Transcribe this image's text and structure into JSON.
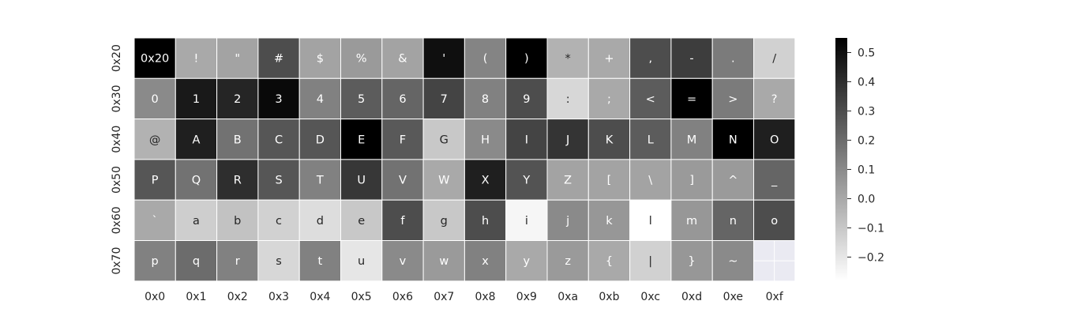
{
  "chart_data": {
    "type": "heatmap",
    "x_tick_labels": [
      "0x0",
      "0x1",
      "0x2",
      "0x3",
      "0x4",
      "0x5",
      "0x6",
      "0x7",
      "0x8",
      "0x9",
      "0xa",
      "0xb",
      "0xc",
      "0xd",
      "0xe",
      "0xf"
    ],
    "y_tick_labels": [
      "0x20",
      "0x30",
      "0x40",
      "0x50",
      "0x60",
      "0x70"
    ],
    "cell_labels": [
      [
        "0x20",
        "!",
        "\"",
        "#",
        "$",
        "%",
        "&",
        "'",
        "(",
        ")",
        "*",
        "+",
        ",",
        "-",
        ".",
        "/"
      ],
      [
        "0",
        "1",
        "2",
        "3",
        "4",
        "5",
        "6",
        "7",
        "8",
        "9",
        ":",
        ";",
        "<",
        "=",
        ">",
        "?"
      ],
      [
        "@",
        "A",
        "B",
        "C",
        "D",
        "E",
        "F",
        "G",
        "H",
        "I",
        "J",
        "K",
        "L",
        "M",
        "N",
        "O"
      ],
      [
        "P",
        "Q",
        "R",
        "S",
        "T",
        "U",
        "V",
        "W",
        "X",
        "Y",
        "Z",
        "[",
        "\\",
        "]",
        "^",
        "_"
      ],
      [
        "`",
        "a",
        "b",
        "c",
        "d",
        "e",
        "f",
        "g",
        "h",
        "i",
        "j",
        "k",
        "l",
        "m",
        "n",
        "o"
      ],
      [
        "p",
        "q",
        "r",
        "s",
        "t",
        "u",
        "v",
        "w",
        "x",
        "y",
        "z",
        "{",
        "|",
        "}",
        "~",
        ""
      ]
    ],
    "values": [
      [
        0.55,
        0.0,
        0.02,
        0.3,
        0.02,
        0.05,
        0.02,
        0.5,
        0.12,
        0.55,
        -0.03,
        0.0,
        0.3,
        0.35,
        0.15,
        -0.13
      ],
      [
        0.1,
        0.47,
        0.43,
        0.52,
        0.13,
        0.25,
        0.22,
        0.33,
        0.13,
        0.3,
        -0.15,
        0.0,
        0.25,
        0.55,
        0.15,
        0.0
      ],
      [
        -0.03,
        0.45,
        0.18,
        0.27,
        0.27,
        0.55,
        0.26,
        -0.1,
        0.1,
        0.33,
        0.38,
        0.3,
        0.25,
        0.13,
        0.55,
        0.45
      ],
      [
        0.27,
        0.18,
        0.4,
        0.27,
        0.13,
        0.37,
        0.18,
        0.0,
        0.45,
        0.28,
        0.02,
        0.02,
        0.02,
        0.05,
        0.05,
        0.22
      ],
      [
        0.0,
        -0.12,
        -0.08,
        -0.13,
        -0.17,
        -0.1,
        0.3,
        -0.1,
        0.3,
        -0.25,
        0.1,
        0.06,
        -0.28,
        0.06,
        0.22,
        0.3
      ],
      [
        0.13,
        0.2,
        0.13,
        -0.15,
        0.13,
        -0.2,
        0.1,
        0.05,
        0.13,
        0.0,
        0.05,
        0.0,
        -0.13,
        0.06,
        0.1,
        null
      ]
    ],
    "colorbar": {
      "min": -0.28,
      "max": 0.55,
      "ticks": [
        0.5,
        0.4,
        0.3,
        0.2,
        0.1,
        0.0,
        -0.1,
        -0.2
      ],
      "tick_labels": [
        "0.5",
        "0.4",
        "0.3",
        "0.2",
        "0.1",
        "0.0",
        "−0.1",
        "−0.2"
      ]
    },
    "colors": {
      "high": "#000000",
      "low": "#ffffff",
      "missing": "#eaeaf2",
      "grid": "#ffffff"
    }
  }
}
